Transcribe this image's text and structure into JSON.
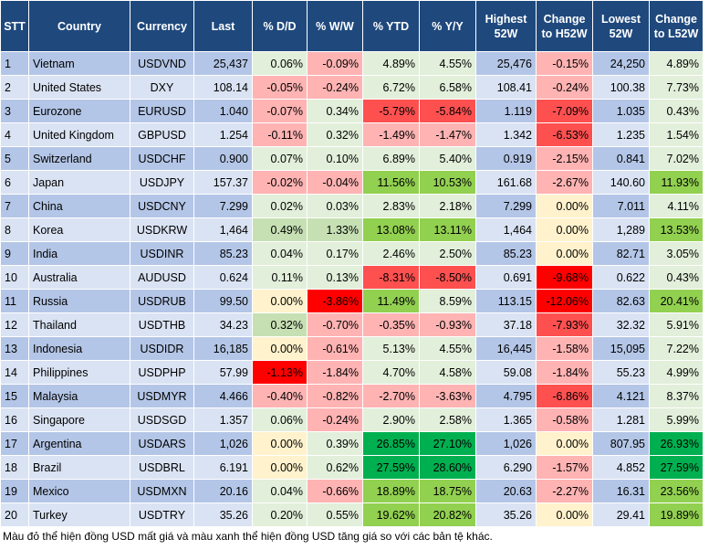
{
  "columns": [
    "STT",
    "Country",
    "Currency",
    "Last",
    "% D/D",
    "% W/W",
    "% YTD",
    "% Y/Y",
    "Highest 52W",
    "Change to H52W",
    "Lowest 52W",
    "Change to L52W"
  ],
  "rows": [
    [
      "1",
      "Vietnam",
      "USDVND",
      "25,437",
      "0.06%",
      "-0.09%",
      "4.89%",
      "4.55%",
      "25,476",
      "-0.15%",
      "24,250",
      "4.89%"
    ],
    [
      "2",
      "United States",
      "DXY",
      "108.14",
      "-0.05%",
      "-0.24%",
      "6.72%",
      "6.58%",
      "108.41",
      "-0.24%",
      "100.38",
      "7.73%"
    ],
    [
      "3",
      "Eurozone",
      "EURUSD",
      "1.040",
      "-0.07%",
      "0.34%",
      "-5.79%",
      "-5.84%",
      "1.119",
      "-7.09%",
      "1.035",
      "0.43%"
    ],
    [
      "4",
      "United Kingdom",
      "GBPUSD",
      "1.254",
      "-0.11%",
      "0.32%",
      "-1.49%",
      "-1.47%",
      "1.342",
      "-6.53%",
      "1.235",
      "1.54%"
    ],
    [
      "5",
      "Switzerland",
      "USDCHF",
      "0.900",
      "0.07%",
      "0.10%",
      "6.89%",
      "5.40%",
      "0.919",
      "-2.15%",
      "0.841",
      "7.02%"
    ],
    [
      "6",
      "Japan",
      "USDJPY",
      "157.37",
      "-0.02%",
      "-0.04%",
      "11.56%",
      "10.53%",
      "161.68",
      "-2.67%",
      "140.60",
      "11.93%"
    ],
    [
      "7",
      "China",
      "USDCNY",
      "7.299",
      "0.02%",
      "0.03%",
      "2.83%",
      "2.18%",
      "7.299",
      "0.00%",
      "7.011",
      "4.11%"
    ],
    [
      "8",
      "Korea",
      "USDKRW",
      "1,464",
      "0.49%",
      "1.33%",
      "13.08%",
      "13.11%",
      "1,464",
      "0.00%",
      "1,289",
      "13.53%"
    ],
    [
      "9",
      "India",
      "USDINR",
      "85.23",
      "0.04%",
      "0.17%",
      "2.46%",
      "2.50%",
      "85.23",
      "0.00%",
      "82.71",
      "3.05%"
    ],
    [
      "10",
      "Australia",
      "AUDUSD",
      "0.624",
      "0.11%",
      "0.13%",
      "-8.31%",
      "-8.50%",
      "0.691",
      "-9.68%",
      "0.622",
      "0.43%"
    ],
    [
      "11",
      "Russia",
      "USDRUB",
      "99.50",
      "0.00%",
      "-3.86%",
      "11.49%",
      "8.59%",
      "113.15",
      "-12.06%",
      "82.63",
      "20.41%"
    ],
    [
      "12",
      "Thailand",
      "USDTHB",
      "34.23",
      "0.32%",
      "-0.70%",
      "-0.35%",
      "-0.93%",
      "37.18",
      "-7.93%",
      "32.32",
      "5.91%"
    ],
    [
      "13",
      "Indonesia",
      "USDIDR",
      "16,185",
      "0.00%",
      "-0.61%",
      "5.13%",
      "4.55%",
      "16,445",
      "-1.58%",
      "15,095",
      "7.22%"
    ],
    [
      "14",
      "Philippines",
      "USDPHP",
      "57.99",
      "-1.13%",
      "-1.84%",
      "4.70%",
      "4.58%",
      "59.08",
      "-1.84%",
      "55.23",
      "4.99%"
    ],
    [
      "15",
      "Malaysia",
      "USDMYR",
      "4.466",
      "-0.40%",
      "-0.82%",
      "-2.70%",
      "-3.63%",
      "4.795",
      "-6.86%",
      "4.121",
      "8.37%"
    ],
    [
      "16",
      "Singapore",
      "USDSGD",
      "1.357",
      "0.06%",
      "-0.24%",
      "2.90%",
      "2.58%",
      "1.365",
      "-0.58%",
      "1.281",
      "5.99%"
    ],
    [
      "17",
      "Argentina",
      "USDARS",
      "1,026",
      "0.00%",
      "0.39%",
      "26.85%",
      "27.10%",
      "1,026",
      "0.00%",
      "807.95",
      "26.93%"
    ],
    [
      "18",
      "Brazil",
      "USDBRL",
      "6.191",
      "0.00%",
      "0.62%",
      "27.59%",
      "28.60%",
      "6.290",
      "-1.57%",
      "4.852",
      "27.59%"
    ],
    [
      "19",
      "Mexico",
      "USDMXN",
      "20.16",
      "0.04%",
      "-0.66%",
      "18.89%",
      "18.75%",
      "20.63",
      "-2.27%",
      "16.31",
      "23.56%"
    ],
    [
      "20",
      "Turkey",
      "USDTRY",
      "35.26",
      "0.20%",
      "0.55%",
      "19.62%",
      "20.82%",
      "35.26",
      "0.00%",
      "29.41",
      "19.89%"
    ]
  ],
  "note": "Màu đỏ thể hiện đồng USD mất giá và màu xanh thể hiện đồng USD tăng giá so với các bản tệ khác.",
  "colors": {
    "header_bg": "#1f497d",
    "row_odd": "#b4c6e7",
    "row_even": "#dae3f3",
    "neutral": "#fff2cc",
    "pos_light": "#e2efda",
    "pos_mid": "#c6e0b4",
    "pos_strong": "#92d050",
    "pos_max": "#00b050",
    "neg_light": "#fce4e4",
    "neg_mid": "#ffb3b3",
    "neg_strong": "#ff5050",
    "neg_max": "#ff0000"
  }
}
